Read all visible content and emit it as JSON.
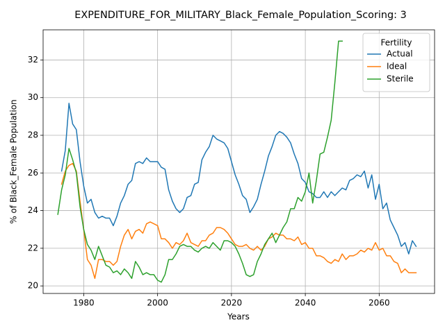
{
  "chart_data": {
    "type": "line",
    "title": "EXPENDITURE_FOR_MILITARY_Black_Female_Population_Scoring: 3",
    "xlabel": "Years",
    "ylabel": "% of Black_Female Population",
    "xlim": [
      1969,
      2075
    ],
    "ylim": [
      19.6,
      33.6
    ],
    "xticks": [
      1980,
      2000,
      2020,
      2040,
      2060
    ],
    "yticks": [
      20,
      22,
      24,
      26,
      28,
      30,
      32
    ],
    "grid": true,
    "legend": {
      "title": "Fertility",
      "placement": "top-right"
    },
    "series": [
      {
        "name": "Actual",
        "color": "#1f77b4",
        "x": [
          1974,
          1975,
          1976,
          1977,
          1978,
          1979,
          1980,
          1981,
          1982,
          1983,
          1984,
          1985,
          1986,
          1987,
          1988,
          1989,
          1990,
          1991,
          1992,
          1993,
          1994,
          1995,
          1996,
          1997,
          1998,
          1999,
          2000,
          2001,
          2002,
          2003,
          2004,
          2005,
          2006,
          2007,
          2008,
          2009,
          2010,
          2011,
          2012,
          2013,
          2014,
          2015,
          2016,
          2017,
          2018,
          2019,
          2020,
          2021,
          2022,
          2023,
          2024,
          2025,
          2026,
          2027,
          2028,
          2029,
          2030,
          2031,
          2032,
          2033,
          2034,
          2035,
          2036,
          2037,
          2038,
          2039,
          2040,
          2041,
          2042,
          2043,
          2044,
          2045,
          2046,
          2047,
          2048,
          2049,
          2050,
          2051,
          2052,
          2053,
          2054,
          2055,
          2056,
          2057,
          2058,
          2059,
          2060,
          2061,
          2062,
          2063,
          2064,
          2065,
          2066,
          2067,
          2068,
          2069,
          2070
        ],
        "values": [
          26.1,
          27.2,
          29.7,
          28.6,
          28.3,
          26.6,
          25.3,
          24.4,
          24.6,
          23.9,
          23.6,
          23.7,
          23.6,
          23.6,
          23.2,
          23.7,
          24.4,
          24.8,
          25.4,
          25.6,
          26.5,
          26.6,
          26.5,
          26.8,
          26.6,
          26.6,
          26.6,
          26.3,
          26.2,
          25.1,
          24.5,
          24.1,
          23.9,
          24.1,
          24.7,
          24.8,
          25.4,
          25.5,
          26.7,
          27.1,
          27.4,
          28.0,
          27.8,
          27.7,
          27.6,
          27.3,
          26.6,
          25.9,
          25.4,
          24.8,
          24.6,
          23.9,
          24.2,
          24.6,
          25.4,
          26.1,
          26.9,
          27.4,
          28.0,
          28.2,
          28.1,
          27.9,
          27.6,
          27.0,
          26.5,
          25.7,
          25.5,
          25.0,
          24.9,
          24.7,
          24.7,
          25.0,
          24.7,
          25.0,
          24.8,
          25.0,
          25.2,
          25.1,
          25.6,
          25.7,
          25.9,
          25.8,
          26.1,
          25.2,
          25.9,
          24.6,
          25.4,
          24.1,
          24.4,
          23.5,
          23.1,
          22.7,
          22.1,
          22.3,
          21.7,
          22.4,
          22.1
        ]
      },
      {
        "name": "Ideal",
        "color": "#ff7f0e",
        "x": [
          1974,
          1975,
          1976,
          1977,
          1978,
          1979,
          1980,
          1981,
          1982,
          1983,
          1984,
          1985,
          1986,
          1987,
          1988,
          1989,
          1990,
          1991,
          1992,
          1993,
          1994,
          1995,
          1996,
          1997,
          1998,
          1999,
          2000,
          2001,
          2002,
          2003,
          2004,
          2005,
          2006,
          2007,
          2008,
          2009,
          2010,
          2011,
          2012,
          2013,
          2014,
          2015,
          2016,
          2017,
          2018,
          2019,
          2020,
          2021,
          2022,
          2023,
          2024,
          2025,
          2026,
          2027,
          2028,
          2029,
          2030,
          2031,
          2032,
          2033,
          2034,
          2035,
          2036,
          2037,
          2038,
          2039,
          2040,
          2041,
          2042,
          2043,
          2044,
          2045,
          2046,
          2047,
          2048,
          2049,
          2050,
          2051,
          2052,
          2053,
          2054,
          2055,
          2056,
          2057,
          2058,
          2059,
          2060,
          2061,
          2062,
          2063,
          2064,
          2065,
          2066,
          2067,
          2068,
          2069,
          2070
        ],
        "values": [
          25.4,
          26.1,
          26.4,
          26.5,
          26.1,
          24.5,
          23.0,
          21.4,
          21.1,
          20.4,
          21.4,
          21.4,
          21.3,
          21.3,
          21.1,
          21.3,
          22.1,
          22.7,
          23.0,
          22.5,
          22.9,
          23.0,
          22.8,
          23.3,
          23.4,
          23.3,
          23.2,
          22.5,
          22.5,
          22.3,
          22.0,
          22.3,
          22.2,
          22.4,
          22.8,
          22.3,
          22.2,
          22.1,
          22.4,
          22.4,
          22.7,
          22.8,
          23.1,
          23.1,
          23.0,
          22.8,
          22.5,
          22.2,
          22.1,
          22.1,
          22.2,
          22.0,
          21.9,
          22.1,
          21.9,
          22.1,
          22.5,
          22.6,
          22.8,
          22.7,
          22.7,
          22.5,
          22.5,
          22.4,
          22.6,
          22.2,
          22.3,
          22.0,
          22.0,
          21.6,
          21.6,
          21.5,
          21.3,
          21.2,
          21.4,
          21.3,
          21.7,
          21.4,
          21.6,
          21.6,
          21.7,
          21.9,
          21.8,
          22.0,
          21.9,
          22.3,
          21.9,
          22.0,
          21.6,
          21.6,
          21.3,
          21.2,
          20.7,
          20.9,
          20.7,
          20.7,
          20.7
        ]
      },
      {
        "name": "Sterile",
        "color": "#2ca02c",
        "x": [
          1973,
          1974,
          1975,
          1976,
          1977,
          1978,
          1979,
          1980,
          1981,
          1982,
          1983,
          1984,
          1985,
          1986,
          1987,
          1988,
          1989,
          1990,
          1991,
          1992,
          1993,
          1994,
          1995,
          1996,
          1997,
          1998,
          1999,
          2000,
          2001,
          2002,
          2003,
          2004,
          2005,
          2006,
          2007,
          2008,
          2009,
          2010,
          2011,
          2012,
          2013,
          2014,
          2015,
          2016,
          2017,
          2018,
          2019,
          2020,
          2021,
          2022,
          2023,
          2024,
          2025,
          2026,
          2027,
          2028,
          2029,
          2030,
          2031,
          2032,
          2033,
          2034,
          2035,
          2036,
          2037,
          2038,
          2039,
          2040,
          2041,
          2042,
          2043,
          2044,
          2045,
          2046,
          2047,
          2048,
          2049,
          2050
        ],
        "values": [
          23.8,
          25.1,
          25.9,
          27.3,
          26.7,
          26.0,
          24.2,
          23.0,
          22.2,
          21.9,
          21.4,
          22.1,
          21.6,
          21.1,
          21.0,
          20.7,
          20.8,
          20.6,
          20.9,
          20.7,
          20.4,
          21.3,
          21.0,
          20.6,
          20.7,
          20.6,
          20.6,
          20.3,
          20.2,
          20.6,
          21.4,
          21.4,
          21.7,
          22.1,
          22.2,
          22.1,
          22.1,
          21.9,
          21.8,
          22.0,
          22.1,
          22.0,
          22.3,
          22.1,
          21.9,
          22.4,
          22.4,
          22.3,
          22.1,
          21.7,
          21.2,
          20.6,
          20.5,
          20.6,
          21.3,
          21.7,
          22.2,
          22.5,
          22.8,
          22.3,
          22.7,
          23.1,
          23.4,
          24.1,
          24.1,
          24.7,
          24.5,
          25.0,
          26.0,
          24.4,
          25.6,
          27.0,
          27.1,
          27.9,
          28.8,
          30.8,
          33.0,
          33.0
        ]
      }
    ]
  }
}
